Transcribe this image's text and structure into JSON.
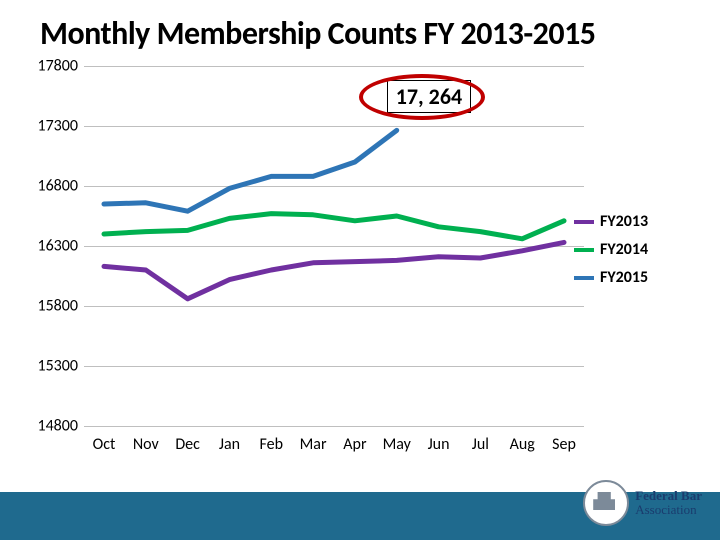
{
  "title": "Monthly Membership Counts FY 2013-2015",
  "chart": {
    "type": "line",
    "ylim": [
      14800,
      17800
    ],
    "ytick_step": 500,
    "yticks": [
      14800,
      15300,
      15800,
      16300,
      16800,
      17300,
      17800
    ],
    "categories": [
      "Oct",
      "Nov",
      "Dec",
      "Jan",
      "Feb",
      "Mar",
      "Apr",
      "May",
      "Jun",
      "Jul",
      "Aug",
      "Sep"
    ],
    "grid_color": "#bfbfbf",
    "background_color": "#ffffff",
    "line_width": 5,
    "series": [
      {
        "name": "FY2013",
        "color": "#7030a0",
        "values": [
          16130,
          16100,
          15860,
          16020,
          16100,
          16160,
          16170,
          16180,
          16210,
          16200,
          16260,
          16330
        ]
      },
      {
        "name": "FY2014",
        "color": "#00b050",
        "values": [
          16400,
          16420,
          16430,
          16530,
          16570,
          16560,
          16510,
          16550,
          16460,
          16420,
          16360,
          16510
        ]
      },
      {
        "name": "FY2015",
        "color": "#2e75b6",
        "values": [
          16650,
          16660,
          16590,
          16780,
          16880,
          16880,
          17000,
          17264,
          null,
          null,
          null,
          null
        ]
      }
    ],
    "callout": {
      "text": "17, 264",
      "attach_series": 2,
      "attach_index": 7
    },
    "legend": {
      "items": [
        "FY2013",
        "FY2014",
        "FY2015"
      ],
      "colors": [
        "#7030a0",
        "#00b050",
        "#2e75b6"
      ],
      "font_size": 16,
      "font_weight": "bold"
    }
  },
  "footer_bar_color": "#1f6a8e",
  "logo": {
    "line1": "Federal Bar",
    "line2": "Association"
  }
}
